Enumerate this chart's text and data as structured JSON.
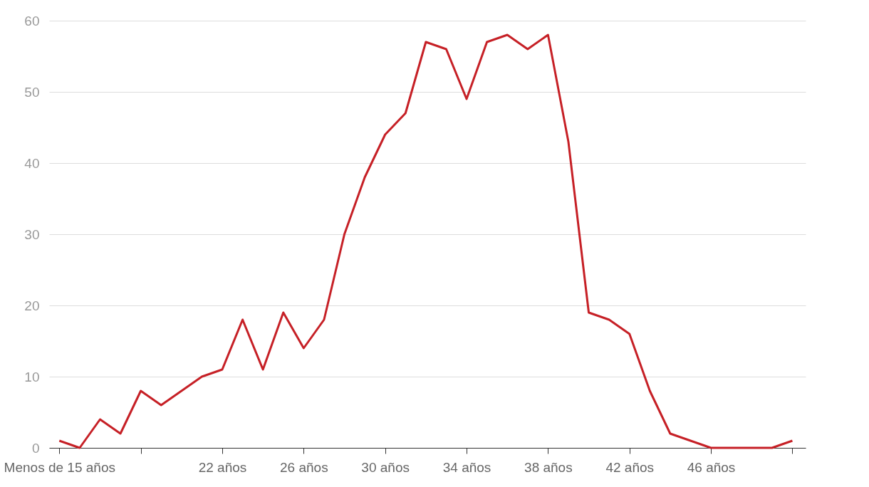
{
  "chart_data": {
    "type": "line",
    "categories": [
      "Menos de 15 años",
      null,
      null,
      null,
      null,
      null,
      null,
      null,
      "22 años",
      null,
      null,
      null,
      "26 años",
      null,
      null,
      null,
      "30 años",
      null,
      null,
      null,
      "34 años",
      null,
      null,
      null,
      "38 años",
      null,
      null,
      null,
      "42 años",
      null,
      null,
      null,
      "46 años",
      null,
      null,
      null,
      null
    ],
    "series": [
      {
        "color": "#c62026",
        "values": [
          1,
          0,
          4,
          2,
          8,
          6,
          8,
          10,
          11,
          18,
          11,
          19,
          14,
          18,
          30,
          38,
          44,
          47,
          57,
          56,
          49,
          57,
          58,
          56,
          58,
          43,
          19,
          18,
          16,
          8,
          2,
          1,
          0,
          0,
          0,
          0,
          1
        ]
      }
    ],
    "ylim": [
      0,
      60
    ],
    "yticks": [
      0,
      10,
      20,
      30,
      40,
      50,
      60
    ],
    "grid": "y",
    "legend": false,
    "marker": "none",
    "line_style": "solid"
  }
}
